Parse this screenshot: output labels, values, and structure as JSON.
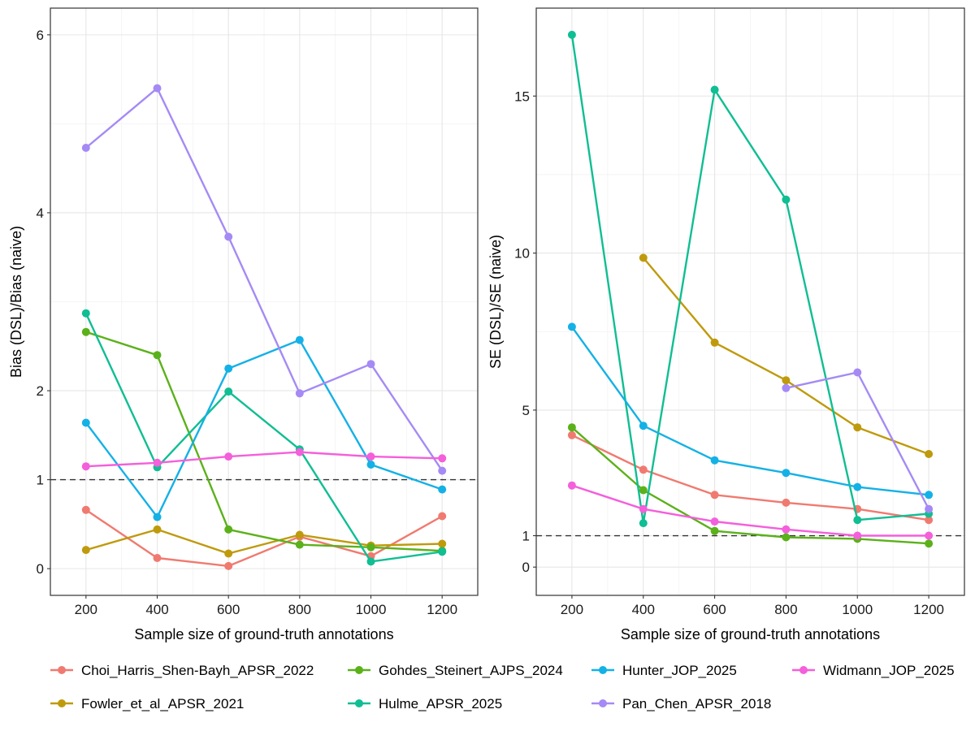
{
  "chart_data": [
    {
      "type": "line",
      "xlabel": "Sample size of ground-truth annotations",
      "ylabel": "Bias (DSL)/Bias (naive)",
      "x": [
        200,
        400,
        600,
        800,
        1000,
        1200
      ],
      "xlim": [
        100,
        1300
      ],
      "ylim": [
        -0.3,
        6.3
      ],
      "yticks": [
        0,
        1,
        2,
        4,
        6
      ],
      "yticks_plot": [
        0,
        1,
        2,
        4,
        6
      ],
      "ytick_labels": [
        "0",
        "1",
        "2",
        "4",
        "6"
      ],
      "minor_grid_y": [
        3,
        5
      ],
      "reference_line": 1,
      "series": [
        {
          "name": "Choi_Harris_Shen-Bayh_APSR_2022",
          "values": [
            0.66,
            0.12,
            0.03,
            0.36,
            0.14,
            0.59
          ]
        },
        {
          "name": "Fowler_et_al_APSR_2021",
          "values": [
            0.21,
            0.44,
            0.17,
            0.38,
            0.26,
            0.28
          ]
        },
        {
          "name": "Gohdes_Steinert_AJPS_2024",
          "values": [
            2.66,
            2.4,
            0.44,
            0.27,
            0.24,
            0.2
          ]
        },
        {
          "name": "Hulme_APSR_2025",
          "values": [
            2.87,
            1.14,
            1.99,
            1.34,
            0.08,
            0.19
          ]
        },
        {
          "name": "Hunter_JOP_2025",
          "values": [
            1.64,
            0.58,
            2.25,
            2.57,
            1.17,
            0.89
          ]
        },
        {
          "name": "Pan_Chen_APSR_2018",
          "values": [
            4.73,
            5.4,
            3.73,
            1.97,
            2.3,
            1.1
          ]
        },
        {
          "name": "Widmann_JOP_2025",
          "values": [
            1.15,
            1.19,
            1.26,
            1.31,
            1.26,
            1.24
          ]
        }
      ]
    },
    {
      "type": "line",
      "xlabel": "Sample size of ground-truth annotations",
      "ylabel": "SE (DSL)/SE (naive)",
      "x": [
        200,
        400,
        600,
        800,
        1000,
        1200
      ],
      "xlim": [
        100,
        1300
      ],
      "ylim": [
        -0.9,
        17.8
      ],
      "yticks": [
        0,
        1,
        5,
        10,
        15
      ],
      "yticks_plot": [
        0,
        1,
        5,
        10,
        15
      ],
      "ytick_labels": [
        "0",
        "1",
        "5",
        "10",
        "15"
      ],
      "minor_grid_y": [
        7.5,
        12.5
      ],
      "reference_line": 1,
      "series": [
        {
          "name": "Choi_Harris_Shen-Bayh_APSR_2022",
          "values": [
            4.2,
            3.1,
            2.3,
            2.05,
            1.85,
            1.5
          ]
        },
        {
          "name": "Fowler_et_al_APSR_2021",
          "values": [
            null,
            9.85,
            7.15,
            5.95,
            4.45,
            3.6
          ]
        },
        {
          "name": "Gohdes_Steinert_AJPS_2024",
          "values": [
            4.45,
            2.45,
            1.15,
            0.95,
            0.9,
            0.75
          ]
        },
        {
          "name": "Hulme_APSR_2025",
          "values": [
            16.95,
            1.4,
            15.2,
            11.7,
            1.5,
            1.7
          ]
        },
        {
          "name": "Hunter_JOP_2025",
          "values": [
            7.65,
            4.5,
            3.4,
            3.0,
            2.55,
            2.3
          ]
        },
        {
          "name": "Pan_Chen_APSR_2018",
          "values": [
            null,
            null,
            null,
            5.7,
            6.2,
            1.85
          ]
        },
        {
          "name": "Widmann_JOP_2025",
          "values": [
            2.6,
            1.85,
            1.45,
            1.2,
            1.0,
            1.0
          ]
        }
      ]
    }
  ],
  "legend": {
    "placement": "bottom",
    "rows": 2,
    "items": [
      {
        "name": "Choi_Harris_Shen-Bayh_APSR_2022",
        "color": "#F07A70"
      },
      {
        "name": "Gohdes_Steinert_AJPS_2024",
        "color": "#5BB11A"
      },
      {
        "name": "Hunter_JOP_2025",
        "color": "#14B1E6"
      },
      {
        "name": "Widmann_JOP_2025",
        "color": "#F45FDB"
      },
      {
        "name": "Fowler_et_al_APSR_2021",
        "color": "#BF9A0C"
      },
      {
        "name": "Hulme_APSR_2025",
        "color": "#10BE93"
      },
      {
        "name": "Pan_Chen_APSR_2018",
        "color": "#A58AF5"
      }
    ]
  },
  "colors": {
    "Choi_Harris_Shen-Bayh_APSR_2022": "#F07A70",
    "Fowler_et_al_APSR_2021": "#BF9A0C",
    "Gohdes_Steinert_AJPS_2024": "#5BB11A",
    "Hulme_APSR_2025": "#10BE93",
    "Hunter_JOP_2025": "#14B1E6",
    "Pan_Chen_APSR_2018": "#A58AF5",
    "Widmann_JOP_2025": "#F45FDB"
  }
}
